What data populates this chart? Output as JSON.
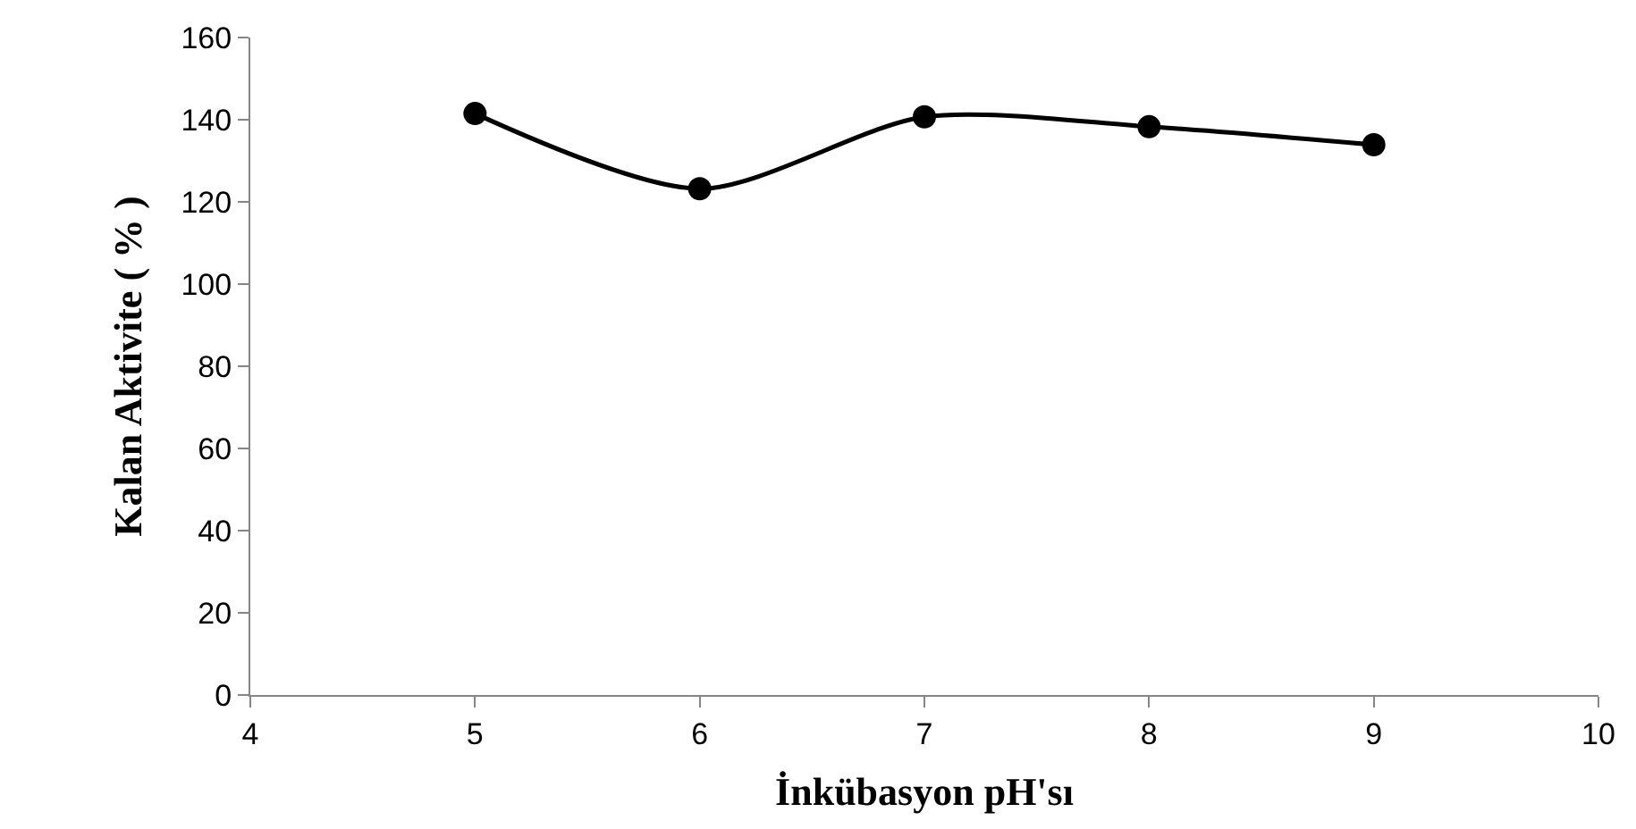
{
  "chart_data": {
    "type": "line",
    "xlabel": "İnkübasyon pH'sı",
    "ylabel": "Kalan Aktivite ( % )",
    "x": [
      5,
      6,
      7,
      8,
      9
    ],
    "series": [
      {
        "color": "#000000",
        "values": [
          141.5,
          123.2,
          140.7,
          138.3,
          133.9
        ]
      }
    ],
    "xlim": [
      4,
      10
    ],
    "xticks": [
      4,
      5,
      6,
      7,
      8,
      9,
      10
    ],
    "ylim": [
      0,
      160
    ],
    "yticks": [
      0,
      20,
      40,
      60,
      80,
      100,
      120,
      140,
      160
    ],
    "marker": "circle",
    "line_style": "solid"
  }
}
